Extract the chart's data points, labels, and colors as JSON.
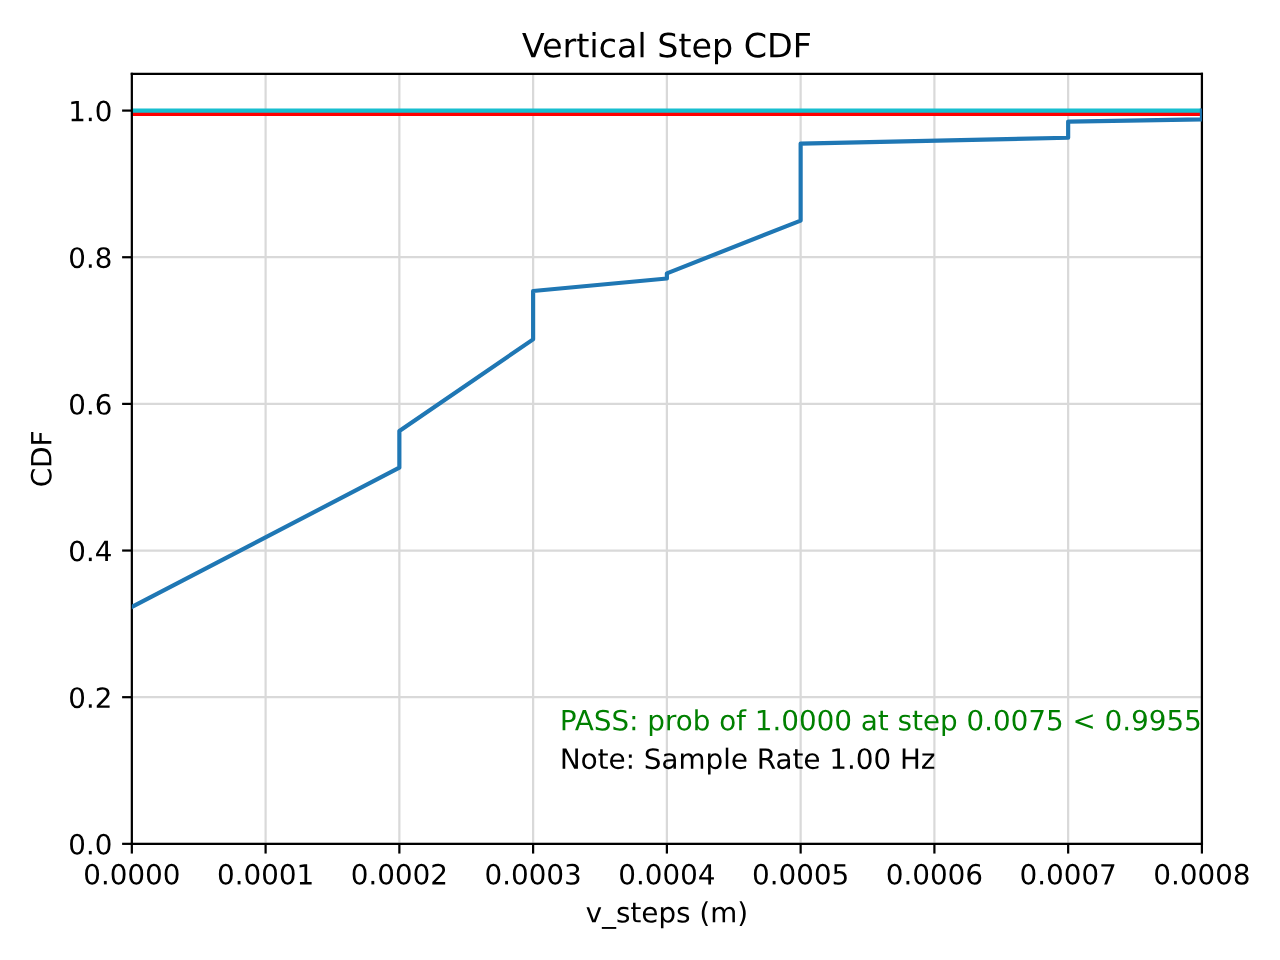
{
  "chart_data": {
    "type": "line",
    "title": "Vertical Step CDF",
    "xlabel": "v_steps (m)",
    "ylabel": "CDF",
    "series": [
      {
        "color": "#1f77b4",
        "x": [
          0,
          0.0002,
          0.0002,
          0.0003,
          0.0003,
          0.0004,
          0.0004,
          0.0005,
          0.0005,
          0.0007,
          0.0007,
          0.0008,
          0.0008
        ],
        "values": [
          0.323,
          0.513,
          0.563,
          0.688,
          0.754,
          0.771,
          0.778,
          0.85,
          0.955,
          0.963,
          0.985,
          0.988,
          1.0
        ]
      }
    ],
    "ref_lines": [
      {
        "axis": "y",
        "value": 0.9955,
        "color": "#ff0000"
      },
      {
        "axis": "y",
        "value": 1.0,
        "color": "#17becf"
      }
    ],
    "annotations": [
      "PASS: prob of 1.0000 at step 0.0075 < 0.9955",
      "Note: Sample Rate 1.00 Hz"
    ],
    "xlim": [
      0,
      0.0008
    ],
    "ylim": [
      0,
      1.05
    ],
    "xticks": [
      {
        "value": 0,
        "label": "0.0000"
      },
      {
        "value": 0.0001,
        "label": "0.0001"
      },
      {
        "value": 0.0002,
        "label": "0.0002"
      },
      {
        "value": 0.0003,
        "label": "0.0003"
      },
      {
        "value": 0.0004,
        "label": "0.0004"
      },
      {
        "value": 0.0005,
        "label": "0.0005"
      },
      {
        "value": 0.0006,
        "label": "0.0006"
      },
      {
        "value": 0.0007,
        "label": "0.0007"
      },
      {
        "value": 0.0008,
        "label": "0.0008"
      }
    ],
    "yticks": [
      {
        "value": 0,
        "label": "0.0"
      },
      {
        "value": 0.2,
        "label": "0.2"
      },
      {
        "value": 0.4,
        "label": "0.4"
      },
      {
        "value": 0.6,
        "label": "0.6"
      },
      {
        "value": 0.8,
        "label": "0.8"
      },
      {
        "value": 1.0,
        "label": "1.0"
      }
    ],
    "grid": true,
    "line_style": "solid",
    "marker": "none"
  }
}
